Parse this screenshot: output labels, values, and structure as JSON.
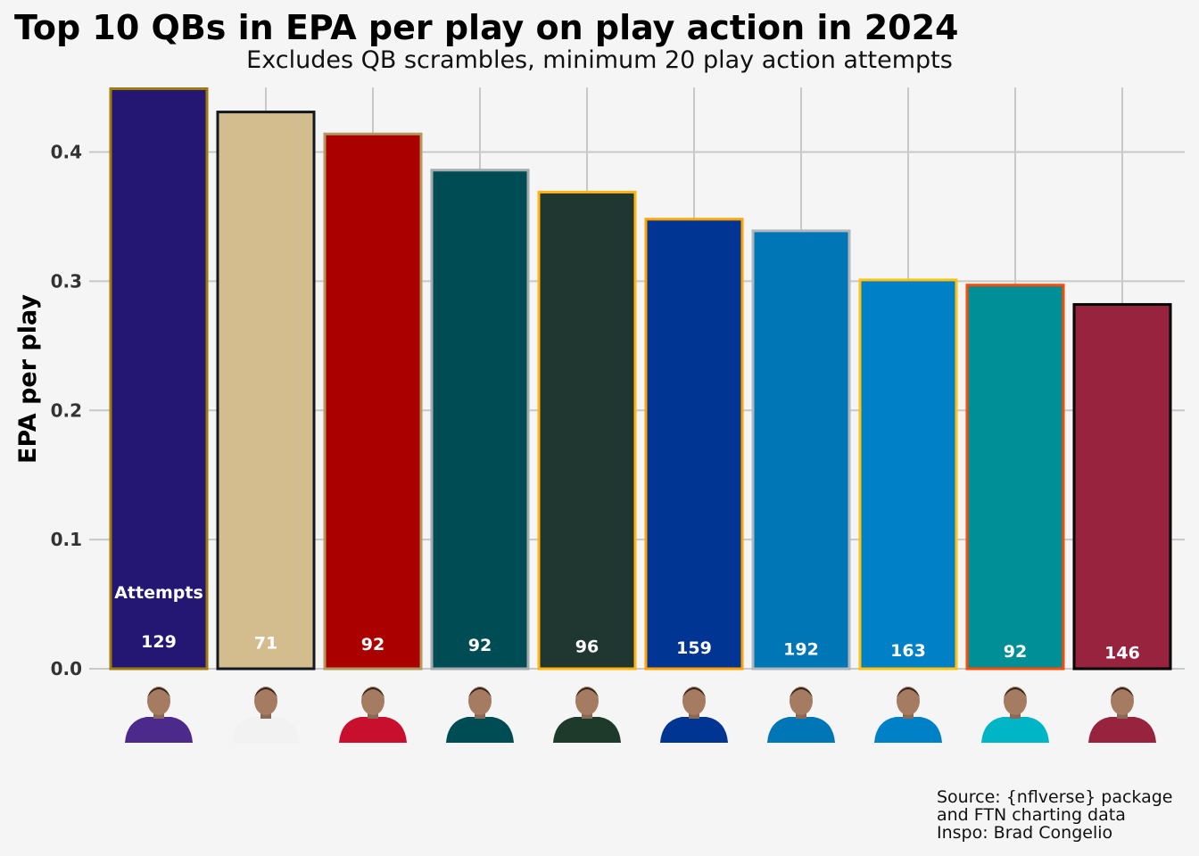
{
  "chart_data": {
    "type": "bar",
    "title": "Top 10 QBs in EPA per play on play action in 2024",
    "subtitle": "Excludes QB scrambles, minimum 20 play action attempts",
    "xlabel": "",
    "ylabel": "EPA per play",
    "ylim": [
      0,
      0.45
    ],
    "yticks": [
      "0.0",
      "0.1",
      "0.2",
      "0.3",
      "0.4"
    ],
    "grid": true,
    "bar_annotation_title": "Attempts",
    "values": [
      0.449,
      0.431,
      0.414,
      0.386,
      0.369,
      0.348,
      0.339,
      0.301,
      0.297,
      0.282
    ],
    "attempts": [
      "129",
      "71",
      "92",
      "92",
      "96",
      "159",
      "192",
      "163",
      "92",
      "146"
    ],
    "fill_colors": [
      "#241773",
      "#D3BC8D",
      "#AA0000",
      "#004C54",
      "#203731",
      "#003594",
      "#0076B6",
      "#0080C6",
      "#008E97",
      "#97233F"
    ],
    "outline_colors": [
      "#9E7C0C",
      "#101820",
      "#B3995D",
      "#A5ACAF",
      "#FFB612",
      "#FFA300",
      "#B0B7BC",
      "#FFC20E",
      "#FC4C02",
      "#000000"
    ],
    "jersey_colors": [
      "#4b2a8c",
      "#f2f2f2",
      "#c8102e",
      "#004c54",
      "#1e3a2b",
      "#003594",
      "#0076b6",
      "#0080c6",
      "#00b5c5",
      "#97233f"
    ],
    "caption_lines": [
      "Source: {nflverse} package",
      "and FTN charting data",
      "Inspo: Brad Congelio"
    ]
  }
}
